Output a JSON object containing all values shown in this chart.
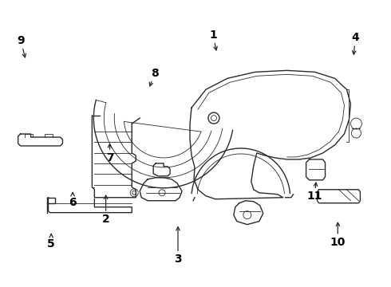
{
  "background": "#ffffff",
  "line_color": "#2a2a2a",
  "label_color": "#000000",
  "lw_main": 1.0,
  "lw_thin": 0.6,
  "labels": {
    "1": [
      0.545,
      0.88,
      0.555,
      0.815
    ],
    "2": [
      0.27,
      0.235,
      0.27,
      0.33
    ],
    "3": [
      0.455,
      0.095,
      0.455,
      0.22
    ],
    "4": [
      0.91,
      0.87,
      0.905,
      0.8
    ],
    "5": [
      0.13,
      0.15,
      0.13,
      0.195
    ],
    "6": [
      0.185,
      0.295,
      0.185,
      0.34
    ],
    "7": [
      0.28,
      0.45,
      0.28,
      0.51
    ],
    "8": [
      0.395,
      0.745,
      0.38,
      0.69
    ],
    "9": [
      0.052,
      0.86,
      0.065,
      0.79
    ],
    "10": [
      0.865,
      0.155,
      0.865,
      0.235
    ],
    "11": [
      0.805,
      0.315,
      0.81,
      0.375
    ]
  }
}
